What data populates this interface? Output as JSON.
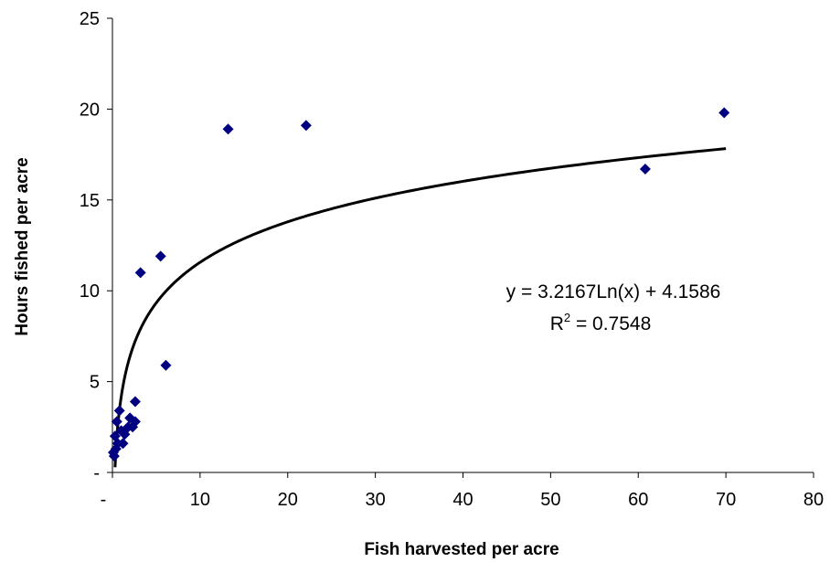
{
  "chart_data": {
    "type": "scatter",
    "title": "",
    "xlabel": "Fish harvested per acre",
    "ylabel": "Hours fished per acre",
    "xlim": [
      0,
      80
    ],
    "ylim": [
      0,
      25
    ],
    "x_ticks": [
      0,
      10,
      20,
      30,
      40,
      50,
      60,
      70,
      80
    ],
    "x_tick_labels": [
      "-",
      "10",
      "20",
      "30",
      "40",
      "50",
      "60",
      "70",
      "80"
    ],
    "y_ticks": [
      0,
      5,
      10,
      15,
      20,
      25
    ],
    "y_tick_labels": [
      "-",
      "5",
      "10",
      "15",
      "20",
      "25"
    ],
    "grid": false,
    "marker_color": "#000080",
    "trend_color": "#000000",
    "series": [
      {
        "points": [
          {
            "x": 0.1,
            "y": 1.1
          },
          {
            "x": 0.2,
            "y": 0.9
          },
          {
            "x": 0.3,
            "y": 2.0
          },
          {
            "x": 0.4,
            "y": 1.3
          },
          {
            "x": 0.5,
            "y": 2.8
          },
          {
            "x": 0.6,
            "y": 1.6
          },
          {
            "x": 0.8,
            "y": 3.4
          },
          {
            "x": 1.0,
            "y": 2.3
          },
          {
            "x": 1.2,
            "y": 1.6
          },
          {
            "x": 1.4,
            "y": 2.1
          },
          {
            "x": 1.8,
            "y": 2.5
          },
          {
            "x": 2.0,
            "y": 3.0
          },
          {
            "x": 2.3,
            "y": 2.5
          },
          {
            "x": 2.6,
            "y": 2.8
          },
          {
            "x": 2.6,
            "y": 3.9
          },
          {
            "x": 3.2,
            "y": 11.0
          },
          {
            "x": 5.5,
            "y": 11.9
          },
          {
            "x": 6.1,
            "y": 5.9
          },
          {
            "x": 13.2,
            "y": 18.9
          },
          {
            "x": 22.1,
            "y": 19.1
          },
          {
            "x": 60.8,
            "y": 16.7
          },
          {
            "x": 69.8,
            "y": 19.8
          }
        ]
      }
    ],
    "trendline": {
      "type": "logarithmic",
      "slope": 3.2167,
      "intercept": 4.1586,
      "x_range": [
        0.3,
        70
      ],
      "equation_label": "y = 3.2167Ln(x) + 4.1586",
      "r2_prefix": "R",
      "r2_superscript": "2",
      "r2_suffix": " = 0.7548"
    }
  }
}
